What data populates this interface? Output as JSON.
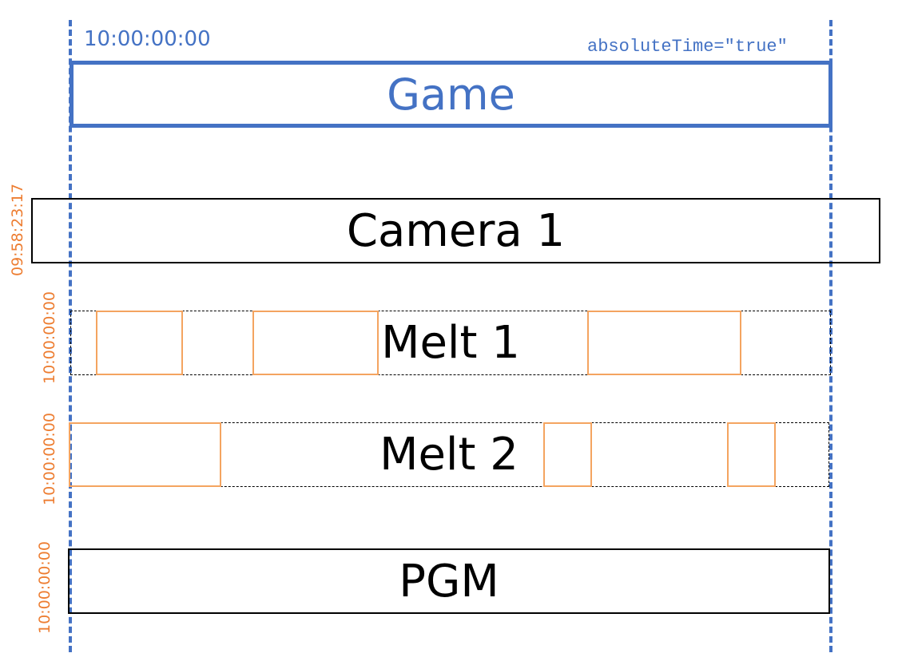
{
  "game": {
    "label": "Game",
    "start_time": "10:00:00:00",
    "attribute": "absoluteTime=\"true\""
  },
  "tracks": [
    {
      "label": "Camera 1",
      "start_time": "09:58:23:17"
    },
    {
      "label": "Melt 1",
      "start_time": "10:00:00:00"
    },
    {
      "label": "Melt 2",
      "start_time": "10:00:00:00"
    },
    {
      "label": "PGM",
      "start_time": "10:00:00:00"
    }
  ],
  "colors": {
    "game": "#4472C4",
    "offset_labels": "#ED7D31",
    "clips": "#F4A460",
    "tracks": "#000000"
  }
}
